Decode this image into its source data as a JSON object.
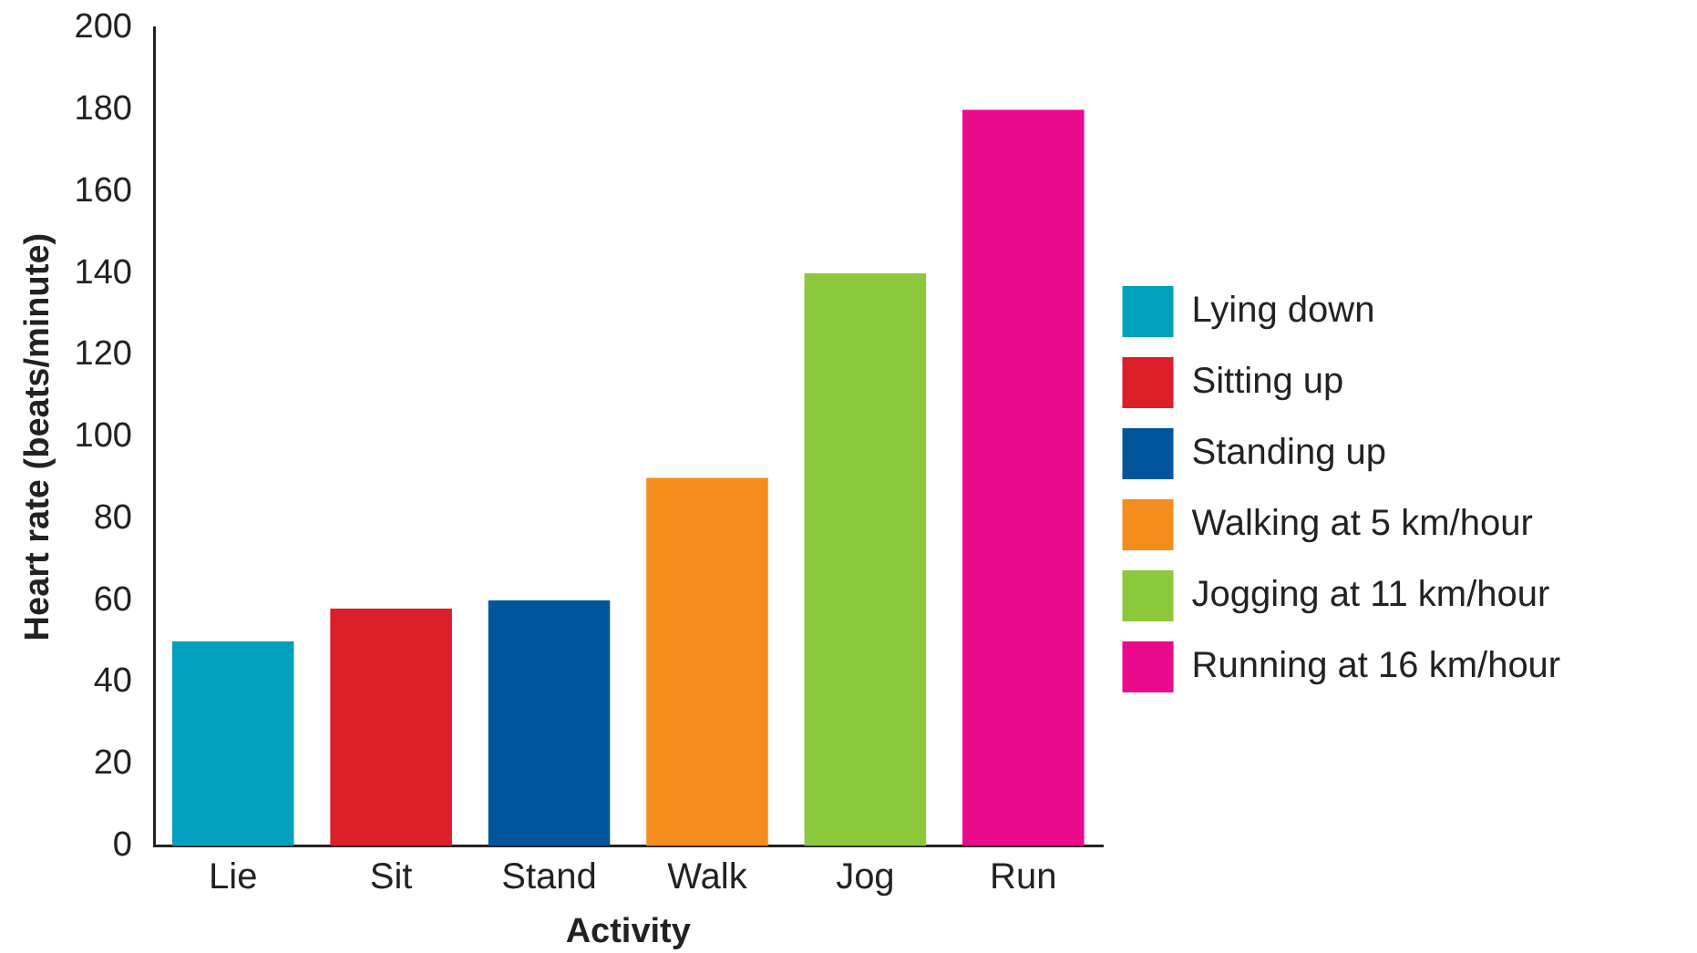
{
  "chart_data": {
    "type": "bar",
    "xlabel": "Activity",
    "ylabel": "Heart rate (beats/minute)",
    "categories": [
      "Lie",
      "Sit",
      "Stand",
      "Walk",
      "Jog",
      "Run"
    ],
    "series": [
      {
        "name": "Lying down",
        "color": "#00a0be",
        "values": [
          50,
          null,
          null,
          null,
          null,
          null
        ]
      },
      {
        "name": "Sitting up",
        "color": "#dc1e28",
        "values": [
          null,
          58,
          null,
          null,
          null,
          null
        ]
      },
      {
        "name": "Standing up",
        "color": "#00559b",
        "values": [
          null,
          null,
          60,
          null,
          null,
          null
        ]
      },
      {
        "name": "Walking at 5 km/hour",
        "color": "#f58c1e",
        "values": [
          null,
          null,
          null,
          90,
          null,
          null
        ]
      },
      {
        "name": "Jogging at 11 km/hour",
        "color": "#8cc83c",
        "values": [
          null,
          null,
          null,
          null,
          140,
          null
        ]
      },
      {
        "name": "Running at 16 km/hour",
        "color": "#eb0a8c",
        "values": [
          null,
          null,
          null,
          null,
          null,
          180
        ]
      }
    ],
    "ylim": [
      0,
      200
    ],
    "yticks": [
      0,
      20,
      40,
      60,
      80,
      100,
      120,
      140,
      160,
      180,
      200
    ],
    "grid": false,
    "legend": "right"
  }
}
